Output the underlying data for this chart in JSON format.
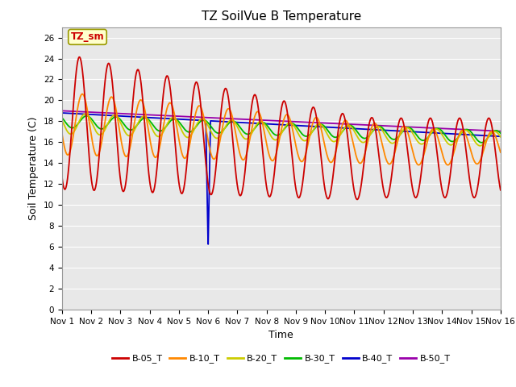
{
  "title": "TZ SoilVue B Temperature",
  "xlabel": "Time",
  "ylabel": "Soil Temperature (C)",
  "ylim": [
    0,
    27
  ],
  "xlim": [
    0,
    15
  ],
  "fig_bg": "#ffffff",
  "plot_bg": "#e8e8e8",
  "annotation_text": "TZ_sm",
  "annotation_bg": "#ffffcc",
  "annotation_border": "#999900",
  "xtick_labels": [
    "Nov 1",
    "Nov 2",
    "Nov 3",
    "Nov 4",
    "Nov 5",
    "Nov 6",
    "Nov 7",
    "Nov 8",
    "Nov 9",
    "Nov 10",
    "Nov 11",
    "Nov 12",
    "Nov 13",
    "Nov 14",
    "Nov 15",
    "Nov 16"
  ],
  "ytick_values": [
    0,
    2,
    4,
    6,
    8,
    10,
    12,
    14,
    16,
    18,
    20,
    22,
    24,
    26
  ],
  "legend_entries": [
    "B-05_T",
    "B-10_T",
    "B-20_T",
    "B-30_T",
    "B-40_T",
    "B-50_T"
  ],
  "legend_colors": [
    "#cc0000",
    "#ff8800",
    "#cccc00",
    "#00bb00",
    "#0000cc",
    "#9900aa"
  ],
  "grid_color": "#ffffff",
  "title_fontsize": 11,
  "axis_fontsize": 9,
  "tick_fontsize": 7.5
}
